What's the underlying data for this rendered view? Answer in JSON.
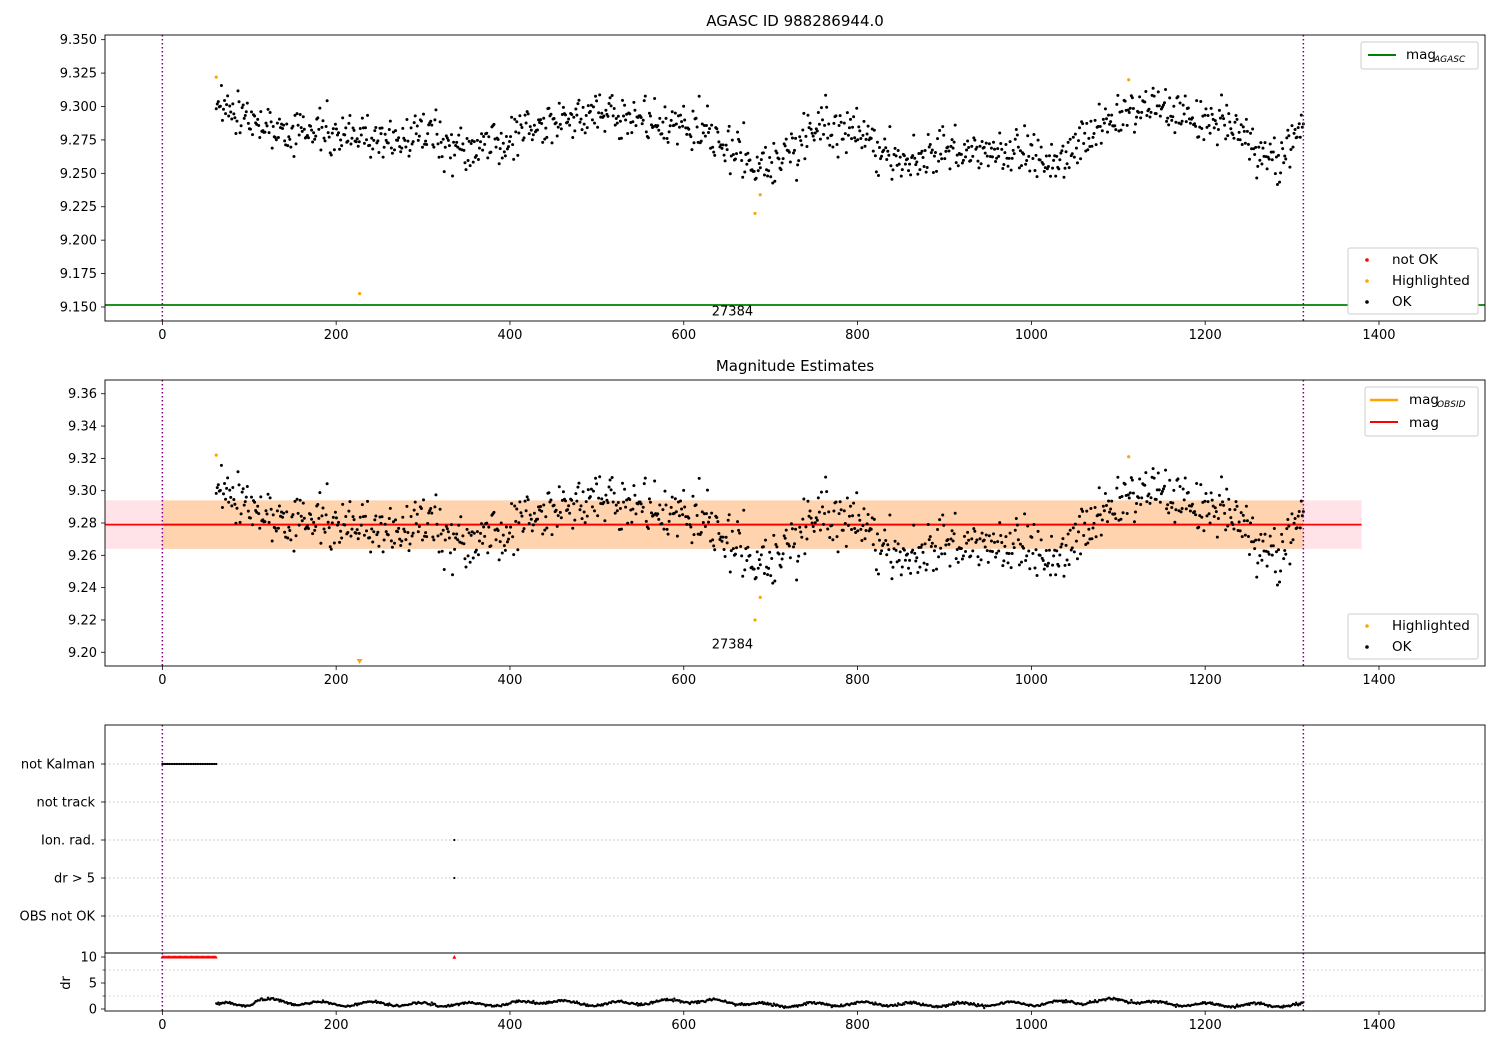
{
  "chart_data": [
    {
      "panel": "top",
      "type": "scatter",
      "title": "AGASC ID 988286944.0",
      "xlabel": "",
      "ylabel": "",
      "xlim": [
        -66,
        1522
      ],
      "ylim": [
        9.1395,
        9.3535
      ],
      "x_ticks": [
        0,
        200,
        400,
        600,
        800,
        1000,
        1200,
        1400
      ],
      "y_ticks": [
        9.15,
        9.175,
        9.2,
        9.225,
        9.25,
        9.275,
        9.3,
        9.325,
        9.35
      ],
      "y_tick_labels": [
        "9.150",
        "9.175",
        "9.200",
        "9.225",
        "9.250",
        "9.275",
        "9.300",
        "9.325",
        "9.350"
      ],
      "vlines": [
        0,
        1313
      ],
      "obs_label": {
        "text": "27384",
        "x": 656,
        "y": 9.1405
      },
      "hlines": [
        {
          "name": "mag",
          "name_sub": "AGASC",
          "y": 9.1515,
          "color": "#008000"
        }
      ],
      "series": [
        {
          "name": "not OK",
          "color": "#ff0000",
          "points": []
        },
        {
          "name": "Highlighted",
          "color": "#ffa500",
          "points": [
            [
              62,
              9.322
            ],
            [
              227,
              9.16
            ],
            [
              682,
              9.22
            ],
            [
              688,
              9.234
            ],
            [
              1112,
              9.32
            ]
          ]
        },
        {
          "name": "OK",
          "color": "#000000",
          "x_range": [
            62,
            1313
          ],
          "count": 1050,
          "trend": [
            [
              62,
              9.302
            ],
            [
              110,
              9.286
            ],
            [
              150,
              9.28
            ],
            [
              200,
              9.282
            ],
            [
              260,
              9.274
            ],
            [
              300,
              9.281
            ],
            [
              350,
              9.266
            ],
            [
              400,
              9.276
            ],
            [
              450,
              9.285
            ],
            [
              500,
              9.297
            ],
            [
              550,
              9.29
            ],
            [
              600,
              9.285
            ],
            [
              640,
              9.276
            ],
            [
              670,
              9.266
            ],
            [
              690,
              9.252
            ],
            [
              720,
              9.266
            ],
            [
              760,
              9.284
            ],
            [
              800,
              9.282
            ],
            [
              830,
              9.264
            ],
            [
              860,
              9.256
            ],
            [
              900,
              9.27
            ],
            [
              950,
              9.264
            ],
            [
              1000,
              9.263
            ],
            [
              1030,
              9.256
            ],
            [
              1060,
              9.276
            ],
            [
              1100,
              9.296
            ],
            [
              1150,
              9.3
            ],
            [
              1200,
              9.288
            ],
            [
              1240,
              9.28
            ],
            [
              1260,
              9.266
            ],
            [
              1290,
              9.264
            ],
            [
              1313,
              9.285
            ]
          ]
        }
      ],
      "legend_top_right": "top-right",
      "legend_points": "lower-right"
    },
    {
      "panel": "middle",
      "type": "scatter",
      "title": "Magnitude Estimates",
      "xlabel": "",
      "ylabel": "",
      "xlim": [
        -66,
        1522
      ],
      "ylim": [
        9.1915,
        9.3685
      ],
      "x_ticks": [
        0,
        200,
        400,
        600,
        800,
        1000,
        1200,
        1400
      ],
      "y_ticks": [
        9.2,
        9.22,
        9.24,
        9.26,
        9.28,
        9.3,
        9.32,
        9.34,
        9.36
      ],
      "y_tick_labels": [
        "9.20",
        "9.22",
        "9.24",
        "9.26",
        "9.28",
        "9.30",
        "9.32",
        "9.34",
        "9.36"
      ],
      "vlines": [
        0,
        1313
      ],
      "obs_label": {
        "text": "27384",
        "x": 656,
        "y": 9.2
      },
      "mag": {
        "name": "mag",
        "value": 9.279,
        "lo": 9.264,
        "hi": 9.294,
        "x_end": 1380,
        "color": "#ff0000",
        "band_color": "#ffc0cb"
      },
      "mag_obsid": {
        "name": "mag",
        "name_sub": "OBSID",
        "value": 9.279,
        "lo": 9.264,
        "hi": 9.294,
        "x_range": [
          0,
          1313
        ],
        "color": "#ffa500"
      },
      "series": [
        {
          "name": "Highlighted",
          "color": "#ffa500",
          "points": [
            [
              62,
              9.322
            ],
            [
              682,
              9.22
            ],
            [
              688,
              9.234
            ],
            [
              1112,
              9.321
            ]
          ]
        },
        {
          "name": "OK",
          "color": "#000000",
          "same_as_panel": "top"
        }
      ],
      "off_scale_marker": {
        "x": 227,
        "direction": "down",
        "color": "#ffa500"
      },
      "legend_top_right": "top-right",
      "legend_points": "lower-right"
    },
    {
      "panel": "bottom",
      "type": "scatter",
      "xlim": [
        -66,
        1522
      ],
      "x_ticks": [
        0,
        200,
        400,
        600,
        800,
        1000,
        1200,
        1400
      ],
      "vlines": [
        0,
        1313
      ],
      "categories": [
        "not Kalman",
        "not track",
        "Ion. rad.",
        "dr > 5",
        "OBS not OK"
      ],
      "flags": [
        {
          "category": "not Kalman",
          "x_range": [
            0,
            62
          ]
        },
        {
          "category": "not track",
          "x_range": []
        },
        {
          "category": "Ion. rad.",
          "x": [
            336
          ]
        },
        {
          "category": "dr > 5",
          "x": [
            336
          ]
        },
        {
          "category": "OBS not OK",
          "x_range": []
        }
      ],
      "dr": {
        "ylabel": "dr",
        "ylim": [
          -0.5,
          11
        ],
        "y_ticks": [
          0,
          5,
          10
        ],
        "clipped": {
          "value": 10,
          "x_range": [
            0,
            62
          ],
          "extra_x": [
            336
          ],
          "color": "#ff0000"
        },
        "trend": [
          [
            62,
            0.8
          ],
          [
            100,
            0.9
          ],
          [
            110,
            1.8
          ],
          [
            150,
            1.2
          ],
          [
            200,
            0.9
          ],
          [
            250,
            1.1
          ],
          [
            300,
            0.8
          ],
          [
            400,
            1.0
          ],
          [
            440,
            1.5
          ],
          [
            500,
            0.9
          ],
          [
            600,
            1.6
          ],
          [
            650,
            1.4
          ],
          [
            700,
            0.7
          ],
          [
            800,
            1.0
          ],
          [
            900,
            0.8
          ],
          [
            1000,
            1.0
          ],
          [
            1080,
            1.5
          ],
          [
            1100,
            1.8
          ],
          [
            1150,
            1.0
          ],
          [
            1200,
            0.8
          ],
          [
            1313,
            0.7
          ]
        ]
      }
    }
  ]
}
